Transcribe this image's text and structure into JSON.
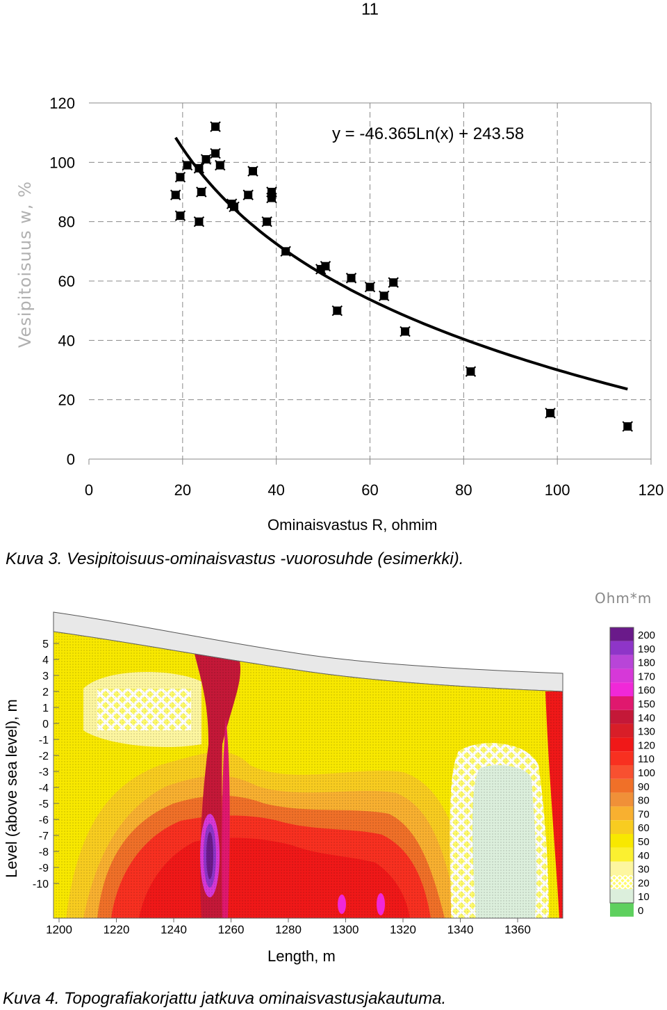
{
  "page_number": "11",
  "figure3": {
    "caption": "Kuva 3. Vesipitoisuus-ominaisvastus -vuorosuhde (esimerkki).",
    "chart_data": {
      "type": "scatter",
      "xlabel": "Ominaisvastus R, ohmim",
      "ylabel": "Vesipitoisuus w, %",
      "xlim": [
        0,
        120
      ],
      "ylim": [
        0,
        120
      ],
      "x_ticks": [
        "0",
        "20",
        "40",
        "60",
        "80",
        "100",
        "120"
      ],
      "y_ticks": [
        "0",
        "20",
        "40",
        "60",
        "80",
        "100",
        "120"
      ],
      "grid": true,
      "trendline_label": "y = -46.365Ln(x) + 243.58",
      "trendline": {
        "type": "logarithmic",
        "a": -46.365,
        "b": 243.58,
        "x_range": [
          18.5,
          115
        ]
      },
      "points": [
        {
          "x": 18.5,
          "y": 89
        },
        {
          "x": 19.5,
          "y": 95
        },
        {
          "x": 19.5,
          "y": 82
        },
        {
          "x": 21,
          "y": 99
        },
        {
          "x": 23.5,
          "y": 98
        },
        {
          "x": 23.5,
          "y": 80
        },
        {
          "x": 24,
          "y": 90
        },
        {
          "x": 25,
          "y": 101
        },
        {
          "x": 27,
          "y": 103
        },
        {
          "x": 27,
          "y": 112
        },
        {
          "x": 28,
          "y": 99
        },
        {
          "x": 30.5,
          "y": 86
        },
        {
          "x": 31,
          "y": 85
        },
        {
          "x": 34,
          "y": 89
        },
        {
          "x": 35,
          "y": 97
        },
        {
          "x": 38,
          "y": 80
        },
        {
          "x": 39,
          "y": 88
        },
        {
          "x": 39,
          "y": 90
        },
        {
          "x": 42,
          "y": 70
        },
        {
          "x": 49.5,
          "y": 64
        },
        {
          "x": 50.5,
          "y": 65
        },
        {
          "x": 53,
          "y": 50
        },
        {
          "x": 56,
          "y": 61
        },
        {
          "x": 60,
          "y": 58
        },
        {
          "x": 63,
          "y": 55
        },
        {
          "x": 65,
          "y": 59.5
        },
        {
          "x": 67.5,
          "y": 43
        },
        {
          "x": 81.5,
          "y": 29.5
        },
        {
          "x": 98.5,
          "y": 15.5
        },
        {
          "x": 115,
          "y": 11
        }
      ]
    }
  },
  "figure4": {
    "caption": "Kuva 4. Topografiakorjattu jatkuva ominaisvastusjakautuma.",
    "ylabel": "Level (above sea level), m",
    "xlabel": "Length, m",
    "units_label": "Ohm*m",
    "x_ticks": [
      "1200",
      "1220",
      "1240",
      "1260",
      "1280",
      "1300",
      "1320",
      "1340",
      "1360"
    ],
    "y_ticks": [
      "5",
      "4",
      "3",
      "2",
      "1",
      "0",
      "-1",
      "-2",
      "-3",
      "-4",
      "-5",
      "-6",
      "-7",
      "-8",
      "-9",
      "-10"
    ],
    "legend": [
      {
        "label": "200",
        "color": "#6a1a8a"
      },
      {
        "label": "190",
        "color": "#8e35c8"
      },
      {
        "label": "180",
        "color": "#b845d8"
      },
      {
        "label": "170",
        "color": "#d638d8"
      },
      {
        "label": "160",
        "color": "#f028d8"
      },
      {
        "label": "150",
        "color": "#e0186e"
      },
      {
        "label": "140",
        "color": "#c41838"
      },
      {
        "label": "130",
        "color": "#d81e28"
      },
      {
        "label": "120",
        "color": "#f01818"
      },
      {
        "label": "110",
        "color": "#f83020"
      },
      {
        "label": "100",
        "color": "#f85030"
      },
      {
        "label": "90",
        "color": "#f07028"
      },
      {
        "label": "80",
        "color": "#f09038"
      },
      {
        "label": "70",
        "color": "#f8b030"
      },
      {
        "label": "60",
        "color": "#f8cc20"
      },
      {
        "label": "50",
        "color": "#f8e800"
      },
      {
        "label": "40",
        "color": "#fbf030"
      },
      {
        "label": "30",
        "color": "#fdf6a0"
      },
      {
        "label": "20",
        "color": "#fffb6a"
      },
      {
        "label": "10",
        "color": "#dcefdc"
      },
      {
        "label": "0",
        "color": "#5ed05e"
      }
    ]
  }
}
